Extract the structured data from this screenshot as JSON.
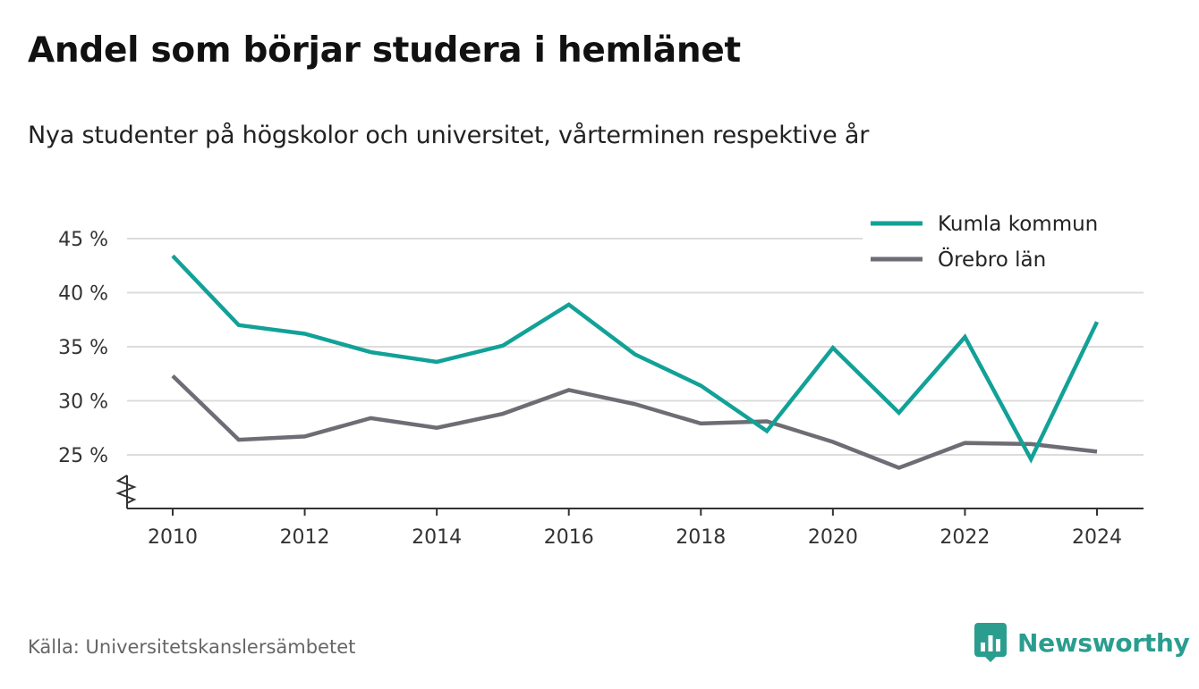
{
  "title": "Andel som börjar studera i hemlänet",
  "subtitle": "Nya studenter på högskolor och universitet, vårterminen respektive år",
  "source": "Källa: Universitetskanslersämbetet",
  "brand": "Newsworthy",
  "colors": {
    "kumla": "#12a197",
    "orebro": "#6e6d75",
    "grid": "#dcdcdc",
    "axis": "#333333",
    "brand": "#2a9d8f"
  },
  "chart_data": {
    "type": "line",
    "x": [
      2010,
      2011,
      2012,
      2013,
      2014,
      2015,
      2016,
      2017,
      2018,
      2019,
      2020,
      2021,
      2022,
      2023,
      2024
    ],
    "series": [
      {
        "name": "Kumla kommun",
        "values": [
          43.4,
          37.0,
          36.2,
          34.5,
          33.6,
          35.1,
          38.9,
          34.3,
          31.4,
          27.2,
          34.9,
          28.9,
          35.9,
          24.6,
          37.3
        ]
      },
      {
        "name": "Örebro län",
        "values": [
          32.3,
          26.4,
          26.7,
          28.4,
          27.5,
          28.8,
          31.0,
          29.7,
          27.9,
          28.1,
          26.2,
          23.8,
          26.1,
          26.0,
          25.3
        ]
      }
    ],
    "yticks": [
      25,
      30,
      35,
      40,
      45
    ],
    "ytick_labels": [
      "25 %",
      "30 %",
      "35 %",
      "40 %",
      "45 %"
    ],
    "xticks": [
      2010,
      2012,
      2014,
      2016,
      2018,
      2020,
      2022,
      2024
    ],
    "xtick_labels": [
      "2010",
      "2012",
      "2014",
      "2016",
      "2018",
      "2020",
      "2022",
      "2024"
    ],
    "ylim": [
      20,
      45
    ],
    "xlim": [
      2010,
      2024
    ],
    "y_axis_break": true,
    "grid": true,
    "legend_position": "top-right"
  }
}
